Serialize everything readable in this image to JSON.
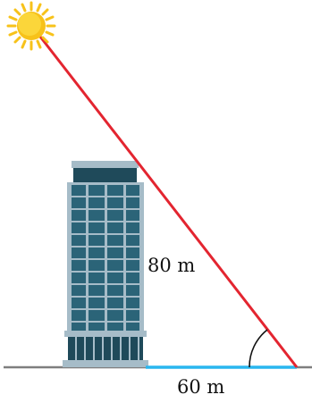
{
  "labels": {
    "height": "80 m",
    "base": "60 m"
  },
  "colors": {
    "sun_ray": "#e32530",
    "shadow": "#29b6ef",
    "ground": "#7f7f7f",
    "sun": "#f7c21a",
    "building_glass": "#2b6478",
    "building_frame": "#a6bcc8",
    "building_roof": "#1f4a5a"
  },
  "icons": {
    "sun": "sun-icon",
    "building": "building-icon",
    "angle": "angle-arc"
  }
}
